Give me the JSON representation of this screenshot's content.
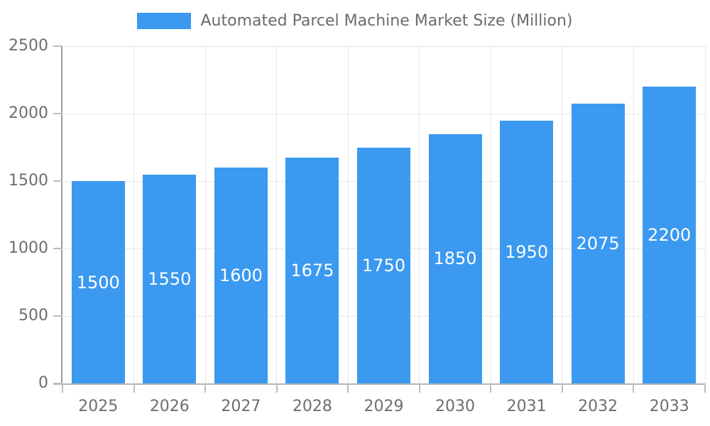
{
  "colors": {
    "bar": "#3B99F0",
    "valueLabel": "#FFFFFF",
    "axisText": "#6E6E6E",
    "legendText": "#6B6B6B",
    "grid": "#E6E6E6",
    "axisLine": "#9A9A9A",
    "baseline": "#B3B3B3",
    "tick": "#BDBDBD",
    "background": "#FFFFFF"
  },
  "legend": {
    "label": "Automated Parcel Machine Market Size (Million)"
  },
  "chart_data": {
    "type": "bar",
    "title": "Automated Parcel Machine Market Size (Million)",
    "categories": [
      "2025",
      "2026",
      "2027",
      "2028",
      "2029",
      "2030",
      "2031",
      "2032",
      "2033"
    ],
    "values": [
      1500,
      1550,
      1600,
      1675,
      1750,
      1850,
      1950,
      2075,
      2200
    ],
    "xlabel": "",
    "ylabel": "",
    "ylim": [
      0,
      2500
    ],
    "yticks": [
      0,
      500,
      1000,
      1500,
      2000,
      2500
    ],
    "grid": true,
    "legend_position": "top",
    "value_labels": "inside-center"
  }
}
